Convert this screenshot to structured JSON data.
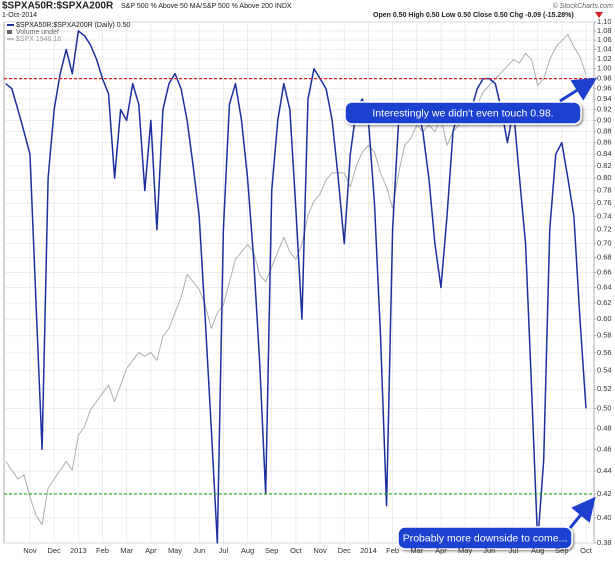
{
  "chart_data": {
    "type": "line",
    "title": "$SPXA50R:$SPXA200R",
    "subtitle": "S&P 500 % Above 50 MA/S&P 500 % Above 200 INDX",
    "date": "1-Oct-2014",
    "quote": "Open 0.50 High 0.50 Low 0.50 Close 0.50 Chg -0.09 (-15.28%)",
    "watermark": "© StockCharts.com",
    "volume_label": "Volume undef",
    "log_scale": true,
    "grid": true,
    "categories": [
      null,
      null,
      null,
      null,
      "Nov",
      null,
      null,
      null,
      "Dec",
      null,
      null,
      null,
      "2013",
      null,
      null,
      null,
      "Feb",
      null,
      null,
      null,
      "Mar",
      null,
      null,
      null,
      "Apr",
      null,
      null,
      null,
      "May",
      null,
      null,
      null,
      "Jun",
      null,
      null,
      null,
      "Jul",
      null,
      null,
      null,
      "Aug",
      null,
      null,
      null,
      "Sep",
      null,
      null,
      null,
      "Oct",
      null,
      null,
      null,
      "Nov",
      null,
      null,
      null,
      "Dec",
      null,
      null,
      null,
      "2014",
      null,
      null,
      null,
      "Feb",
      null,
      null,
      null,
      "Mar",
      null,
      null,
      null,
      "Apr",
      null,
      null,
      null,
      "May",
      null,
      null,
      null,
      "Jun",
      null,
      null,
      null,
      "Jul",
      null,
      null,
      null,
      "Aug",
      null,
      null,
      null,
      "Sep",
      null,
      null,
      null,
      "Oct"
    ],
    "series": [
      {
        "name": "$SPX 1946.16",
        "color": "#a9afb4",
        "axis": "y2",
        "values": [
          1430,
          1420,
          1410,
          1415,
          1390,
          1370,
          1360,
          1400,
          1410,
          1420,
          1430,
          1420,
          1460,
          1470,
          1490,
          1500,
          1510,
          1520,
          1500,
          1520,
          1540,
          1550,
          1560,
          1555,
          1560,
          1550,
          1580,
          1590,
          1610,
          1630,
          1660,
          1650,
          1640,
          1620,
          1590,
          1610,
          1620,
          1650,
          1680,
          1690,
          1700,
          1690,
          1660,
          1650,
          1670,
          1690,
          1710,
          1690,
          1680,
          1700,
          1740,
          1760,
          1770,
          1790,
          1800,
          1800,
          1800,
          1780,
          1810,
          1830,
          1840,
          1830,
          1800,
          1780,
          1750,
          1800,
          1840,
          1850,
          1870,
          1860,
          1870,
          1860,
          1880,
          1840,
          1860,
          1870,
          1880,
          1880,
          1900,
          1920,
          1930,
          1940,
          1950,
          1960,
          1970,
          1965,
          1980,
          1970,
          1930,
          1940,
          1970,
          1990,
          2000,
          2010,
          1990,
          1975,
          1946
        ]
      },
      {
        "name": "$SPXA50R:$SPXA200R (Daily) 0.50",
        "color": "#1b2f9e",
        "values": [
          0.97,
          0.96,
          0.92,
          0.88,
          0.84,
          0.62,
          0.46,
          0.8,
          0.92,
          0.99,
          1.04,
          0.99,
          1.08,
          1.07,
          1.05,
          1.02,
          0.98,
          0.95,
          0.8,
          0.92,
          0.9,
          0.97,
          0.93,
          0.78,
          0.9,
          0.72,
          0.92,
          0.97,
          0.99,
          0.96,
          0.9,
          0.82,
          0.74,
          0.6,
          0.48,
          0.38,
          0.72,
          0.93,
          0.97,
          0.9,
          0.8,
          0.68,
          0.55,
          0.42,
          0.78,
          0.9,
          0.97,
          0.92,
          0.75,
          0.6,
          0.94,
          1.0,
          0.98,
          0.96,
          0.9,
          0.8,
          0.7,
          0.84,
          0.92,
          0.94,
          0.9,
          0.76,
          0.58,
          0.41,
          0.72,
          0.9,
          0.93,
          0.9,
          0.93,
          0.88,
          0.8,
          0.7,
          0.64,
          0.74,
          0.88,
          0.92,
          0.9,
          0.92,
          0.96,
          0.98,
          0.98,
          0.97,
          0.92,
          0.86,
          0.92,
          0.8,
          0.7,
          0.52,
          0.38,
          0.45,
          0.72,
          0.84,
          0.86,
          0.8,
          0.74,
          0.6,
          0.5
        ]
      }
    ],
    "ylim": [
      0.38,
      1.1
    ],
    "yticks": [
      0.38,
      {
        "value": 0.4,
        "label": "0.40"
      },
      0.42,
      0.44,
      0.46,
      0.48,
      {
        "value": 0.5,
        "label": "0.50"
      },
      0.52,
      0.54,
      0.56,
      0.58,
      {
        "value": 0.6,
        "label": "0.60"
      },
      0.62,
      0.64,
      0.66,
      0.68,
      {
        "value": 0.7,
        "label": "0.70"
      },
      0.72,
      0.74,
      0.76,
      0.78,
      {
        "value": 0.8,
        "label": "0.80"
      },
      0.82,
      0.84,
      0.86,
      0.88,
      {
        "value": 0.9,
        "label": "0.90"
      },
      0.92,
      0.94,
      0.96,
      0.98,
      {
        "value": 1.0,
        "label": "1.00"
      },
      1.02,
      1.04,
      1.06,
      1.08,
      {
        "value": 1.1,
        "label": "1.10"
      }
    ],
    "y2lim": [
      1340,
      2030
    ],
    "reference_lines": [
      {
        "value": 0.98,
        "color": "#e02020"
      },
      {
        "value": 0.42,
        "color": "#1faa1f"
      }
    ],
    "annotations": [
      "Interestingly we didn't even touch 0.98.",
      "Probably more downside to come..."
    ]
  }
}
